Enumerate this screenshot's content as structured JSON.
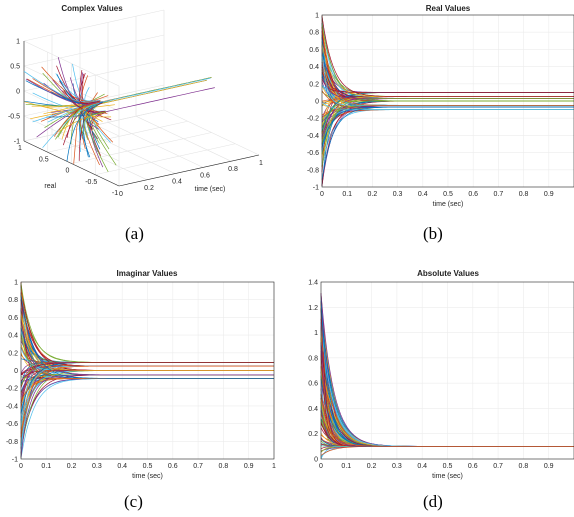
{
  "chart_data": [
    {
      "id": "a",
      "type": "line3d",
      "title": "Complex Values",
      "caption": "(a)",
      "xlabel": "time (sec)",
      "ylabel": "real",
      "zlabel": "",
      "x_ticks": [
        "0",
        "0.2",
        "0.4",
        "0.6",
        "0.8",
        "1"
      ],
      "y_ticks": [
        "-1",
        "-0.5",
        "0",
        "0.5",
        "1"
      ],
      "z_ticks": [
        "-1",
        "-0.5",
        "0",
        "0.5",
        "1"
      ],
      "xlim": [
        0,
        1
      ],
      "ylim": [
        -1,
        1
      ],
      "zlim": [
        -1,
        1
      ],
      "series_count": 100,
      "steady_state": [
        [
          0.05,
          0.09
        ],
        [
          0.06,
          0.06
        ],
        [
          0.02,
          0.08
        ],
        [
          0.1,
          0.0
        ],
        [
          0.0,
          0.1
        ],
        [
          -0.07,
          -0.07
        ]
      ],
      "grid": true
    },
    {
      "id": "b",
      "type": "line",
      "title": "Real Values",
      "caption": "(b)",
      "xlabel": "time (sec)",
      "ylabel": "",
      "x_ticks": [
        "0",
        "0.1",
        "0.2",
        "0.3",
        "0.4",
        "0.5",
        "0.6",
        "0.7",
        "0.8",
        "0.9"
      ],
      "y_ticks": [
        "-1",
        "-0.8",
        "-0.6",
        "-0.4",
        "-0.2",
        "0",
        "0.2",
        "0.4",
        "0.6",
        "0.8",
        "1"
      ],
      "xlim": [
        0,
        1
      ],
      "ylim": [
        -1,
        1
      ],
      "series_count": 100,
      "initial_range": [
        -1,
        1
      ],
      "steady_state": [
        -0.1,
        -0.07,
        -0.05,
        0.0,
        0.03,
        0.05,
        0.1
      ],
      "decay_time_constant": 0.035,
      "grid": true
    },
    {
      "id": "c",
      "type": "line",
      "title": "Imaginar Values",
      "caption": "(c)",
      "xlabel": "time (sec)",
      "ylabel": "",
      "x_ticks": [
        "0",
        "0.1",
        "0.2",
        "0.3",
        "0.4",
        "0.5",
        "0.6",
        "0.7",
        "0.8",
        "0.9",
        "1"
      ],
      "y_ticks": [
        "-1",
        "-0.8",
        "-0.6",
        "-0.4",
        "-0.2",
        "0",
        "0.2",
        "0.4",
        "0.6",
        "0.8",
        "1"
      ],
      "xlim": [
        0,
        1
      ],
      "ylim": [
        -1,
        1
      ],
      "series_count": 100,
      "initial_range": [
        -1,
        1
      ],
      "steady_state": [
        -0.09,
        -0.05,
        0.0,
        0.05,
        0.09
      ],
      "decay_time_constant": 0.035,
      "grid": true
    },
    {
      "id": "d",
      "type": "line",
      "title": "Absolute Values",
      "caption": "(d)",
      "xlabel": "time (sec)",
      "ylabel": "",
      "x_ticks": [
        "0",
        "0.1",
        "0.2",
        "0.3",
        "0.4",
        "0.5",
        "0.6",
        "0.7",
        "0.8",
        "0.9"
      ],
      "y_ticks": [
        "0",
        "0.2",
        "0.4",
        "0.6",
        "0.8",
        "1",
        "1.2",
        "1.4"
      ],
      "xlim": [
        0,
        1
      ],
      "ylim": [
        0,
        1.4
      ],
      "series_count": 100,
      "initial_range": [
        0,
        1.4
      ],
      "steady_state": [
        0.1
      ],
      "decay_time_constant": 0.035,
      "grid": true
    }
  ],
  "colors": [
    "#0072bd",
    "#d95319",
    "#edb120",
    "#7e2f8e",
    "#77ac30",
    "#4dbeee",
    "#a2142f"
  ]
}
